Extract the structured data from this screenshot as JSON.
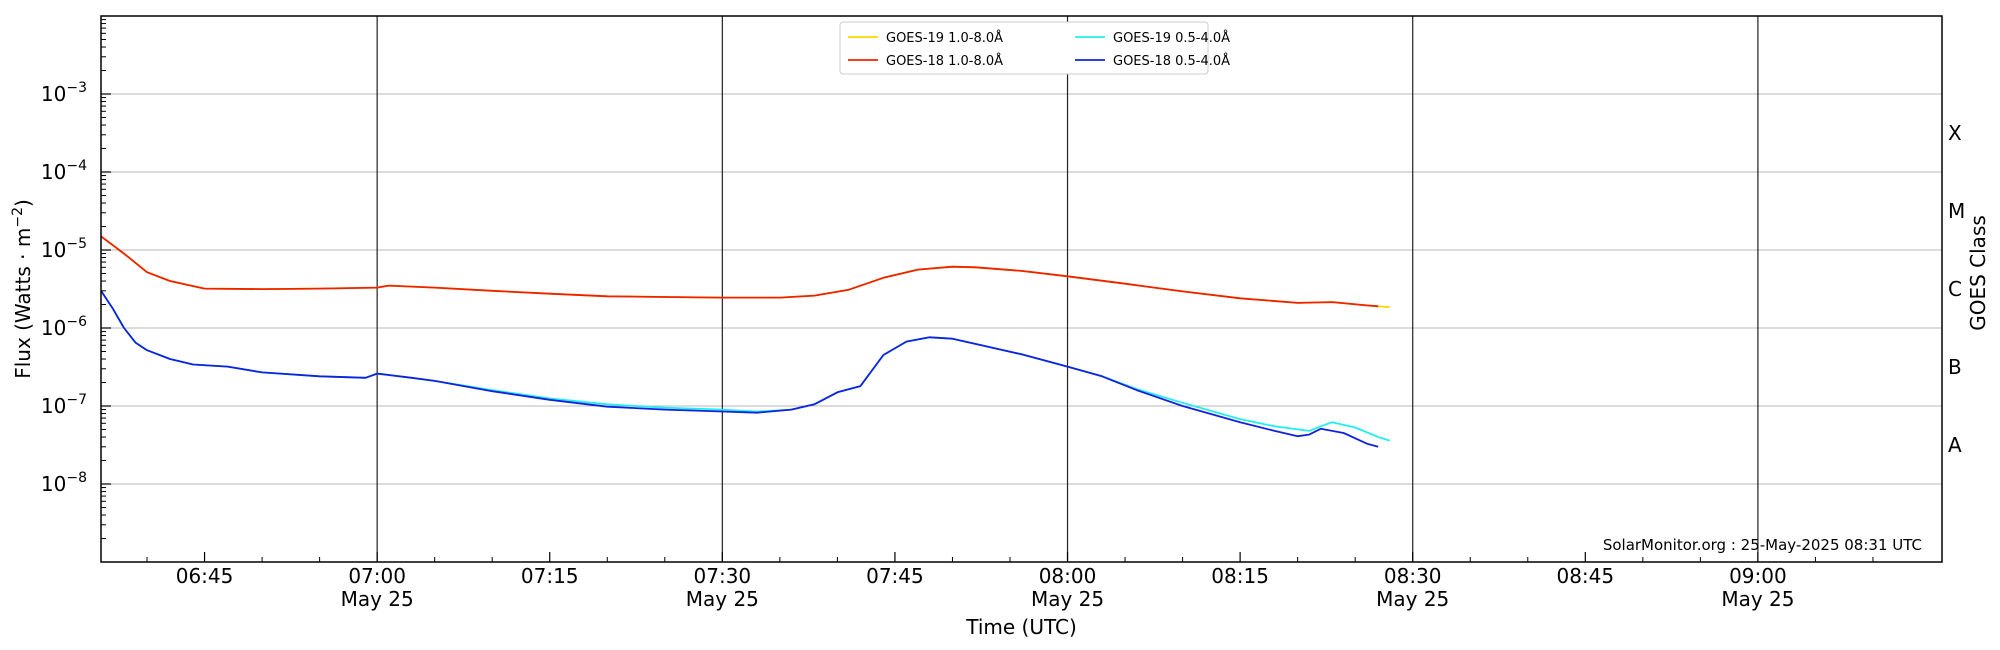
{
  "chart_data": {
    "type": "line",
    "title": "",
    "xlabel": "Time (UTC)",
    "ylabel": "Flux (Watts · m",
    "ylabel_sup": "−2",
    "ylabel_close": ")",
    "right_label": "GOES Class",
    "y_scale": "log",
    "ylim": [
      1e-09,
      0.01
    ],
    "xlim": [
      "06:36",
      "09:16"
    ],
    "grid": "horizontal",
    "legend_position": "top-center",
    "credit": "SolarMonitor.org : 25-May-2025 08:31 UTC",
    "y_ticks": [
      {
        "value": 1e-08,
        "base": "10",
        "exp": "−8"
      },
      {
        "value": 1e-07,
        "base": "10",
        "exp": "−7"
      },
      {
        "value": 1e-06,
        "base": "10",
        "exp": "−6"
      },
      {
        "value": 1e-05,
        "base": "10",
        "exp": "−5"
      },
      {
        "value": 0.0001,
        "base": "10",
        "exp": "−4"
      },
      {
        "value": 0.001,
        "base": "10",
        "exp": "−3"
      }
    ],
    "x_ticks": [
      {
        "time": "06:45",
        "label": "06:45",
        "date": ""
      },
      {
        "time": "07:00",
        "label": "07:00",
        "date": "May 25"
      },
      {
        "time": "07:15",
        "label": "07:15",
        "date": ""
      },
      {
        "time": "07:30",
        "label": "07:30",
        "date": "May 25"
      },
      {
        "time": "07:45",
        "label": "07:45",
        "date": ""
      },
      {
        "time": "08:00",
        "label": "08:00",
        "date": "May 25"
      },
      {
        "time": "08:15",
        "label": "08:15",
        "date": ""
      },
      {
        "time": "08:30",
        "label": "08:30",
        "date": "May 25"
      },
      {
        "time": "08:45",
        "label": "08:45",
        "date": ""
      },
      {
        "time": "09:00",
        "label": "09:00",
        "date": "May 25"
      }
    ],
    "vlines": [
      "07:00",
      "07:30",
      "08:00",
      "08:30",
      "09:00"
    ],
    "classes": [
      {
        "label": "A",
        "value": 3.16e-08
      },
      {
        "label": "B",
        "value": 3.16e-07
      },
      {
        "label": "C",
        "value": 3.16e-06
      },
      {
        "label": "M",
        "value": 3.16e-05
      },
      {
        "label": "X",
        "value": 0.000316
      }
    ],
    "series": [
      {
        "name": "GOES-19 1.0-8.0Å",
        "color": "#ffd700",
        "x": [
          "06:36",
          "06:38",
          "06:40",
          "06:42",
          "06:45",
          "06:50",
          "06:55",
          "07:00",
          "07:01",
          "07:05",
          "07:10",
          "07:15",
          "07:20",
          "07:25",
          "07:30",
          "07:35",
          "07:38",
          "07:41",
          "07:44",
          "07:47",
          "07:50",
          "07:52",
          "07:56",
          "08:00",
          "08:05",
          "08:10",
          "08:15",
          "08:20",
          "08:23",
          "08:26",
          "08:28"
        ],
        "y": [
          1.5e-05,
          9e-06,
          5.2e-06,
          4e-06,
          3.2e-06,
          3.15e-06,
          3.2e-06,
          3.3e-06,
          3.5e-06,
          3.3e-06,
          3e-06,
          2.75e-06,
          2.55e-06,
          2.5e-06,
          2.45e-06,
          2.45e-06,
          2.6e-06,
          3.1e-06,
          4.4e-06,
          5.6e-06,
          6.1e-06,
          6e-06,
          5.4e-06,
          4.6e-06,
          3.7e-06,
          2.95e-06,
          2.4e-06,
          2.1e-06,
          2.15e-06,
          1.95e-06,
          1.85e-06
        ]
      },
      {
        "name": "GOES-18 1.0-8.0Å",
        "color": "#ee2200",
        "x": [
          "06:36",
          "06:38",
          "06:40",
          "06:42",
          "06:45",
          "06:50",
          "06:55",
          "07:00",
          "07:01",
          "07:05",
          "07:10",
          "07:15",
          "07:20",
          "07:25",
          "07:30",
          "07:35",
          "07:38",
          "07:41",
          "07:44",
          "07:47",
          "07:50",
          "07:52",
          "07:56",
          "08:00",
          "08:05",
          "08:10",
          "08:15",
          "08:20",
          "08:23",
          "08:26",
          "08:27"
        ],
        "y": [
          1.5e-05,
          9e-06,
          5.2e-06,
          4e-06,
          3.2e-06,
          3.15e-06,
          3.2e-06,
          3.3e-06,
          3.5e-06,
          3.3e-06,
          3e-06,
          2.75e-06,
          2.55e-06,
          2.5e-06,
          2.45e-06,
          2.45e-06,
          2.6e-06,
          3.1e-06,
          4.4e-06,
          5.6e-06,
          6.1e-06,
          6e-06,
          5.4e-06,
          4.6e-06,
          3.7e-06,
          2.95e-06,
          2.4e-06,
          2.1e-06,
          2.15e-06,
          1.95e-06,
          1.9e-06
        ]
      },
      {
        "name": "GOES-19 0.5-4.0Å",
        "color": "#22eeee",
        "x": [
          "06:36",
          "06:37",
          "06:38",
          "06:39",
          "06:40",
          "06:42",
          "06:44",
          "06:47",
          "06:50",
          "06:55",
          "06:59",
          "07:00",
          "07:01",
          "07:03",
          "07:05",
          "07:10",
          "07:15",
          "07:20",
          "07:25",
          "07:30",
          "07:33",
          "07:36",
          "07:38",
          "07:40",
          "07:42",
          "07:44",
          "07:46",
          "07:48",
          "07:50",
          "07:53",
          "07:56",
          "08:00",
          "08:03",
          "08:06",
          "08:10",
          "08:15",
          "08:18",
          "08:21",
          "08:22",
          "08:23",
          "08:25",
          "08:27",
          "08:28"
        ],
        "y": [
          3e-06,
          1.8e-06,
          1e-06,
          6.5e-07,
          5.2e-07,
          4e-07,
          3.4e-07,
          3.2e-07,
          2.7e-07,
          2.4e-07,
          2.3e-07,
          2.6e-07,
          2.5e-07,
          2.3e-07,
          2.1e-07,
          1.6e-07,
          1.25e-07,
          1.05e-07,
          9.5e-08,
          9e-08,
          8.5e-08,
          9e-08,
          1.05e-07,
          1.5e-07,
          1.8e-07,
          4.5e-07,
          6.7e-07,
          7.6e-07,
          7.3e-07,
          5.8e-07,
          4.6e-07,
          3.2e-07,
          2.4e-07,
          1.65e-07,
          1.1e-07,
          6.8e-08,
          5.5e-08,
          4.8e-08,
          5.5e-08,
          6.2e-08,
          5.3e-08,
          4e-08,
          3.6e-08
        ]
      },
      {
        "name": "GOES-18 0.5-4.0Å",
        "color": "#1122dd",
        "x": [
          "06:36",
          "06:37",
          "06:38",
          "06:39",
          "06:40",
          "06:42",
          "06:44",
          "06:47",
          "06:50",
          "06:55",
          "06:59",
          "07:00",
          "07:01",
          "07:03",
          "07:05",
          "07:10",
          "07:15",
          "07:20",
          "07:25",
          "07:30",
          "07:33",
          "07:36",
          "07:38",
          "07:40",
          "07:42",
          "07:44",
          "07:46",
          "07:48",
          "07:50",
          "07:53",
          "07:56",
          "08:00",
          "08:03",
          "08:06",
          "08:10",
          "08:15",
          "08:18",
          "08:20",
          "08:21",
          "08:22",
          "08:24",
          "08:26",
          "08:27"
        ],
        "y": [
          3e-06,
          1.8e-06,
          1e-06,
          6.5e-07,
          5.2e-07,
          4e-07,
          3.4e-07,
          3.2e-07,
          2.7e-07,
          2.4e-07,
          2.3e-07,
          2.6e-07,
          2.5e-07,
          2.3e-07,
          2.1e-07,
          1.55e-07,
          1.2e-07,
          9.8e-08,
          9e-08,
          8.5e-08,
          8.2e-08,
          9e-08,
          1.05e-07,
          1.5e-07,
          1.8e-07,
          4.5e-07,
          6.7e-07,
          7.6e-07,
          7.3e-07,
          5.8e-07,
          4.6e-07,
          3.2e-07,
          2.4e-07,
          1.6e-07,
          1e-07,
          6.2e-08,
          4.8e-08,
          4.1e-08,
          4.3e-08,
          5.1e-08,
          4.5e-08,
          3.3e-08,
          3e-08
        ]
      }
    ]
  }
}
